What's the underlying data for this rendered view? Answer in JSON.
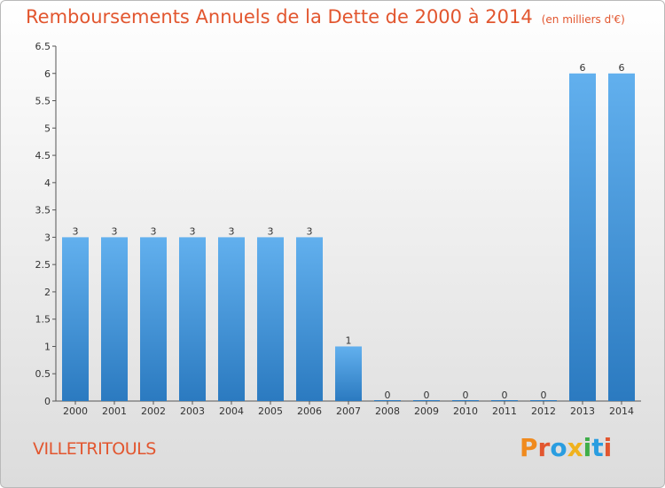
{
  "title": "Remboursements Annuels de la Dette de 2000 à 2014",
  "units": "(en milliers d'€)",
  "town": "VILLETRITOULS",
  "logo": "Proxiti",
  "colors": {
    "title": "#e2562f",
    "bar_light": "#62b0ee",
    "bar_dark": "#2b7ac0",
    "logo": [
      "#f08a1d",
      "#e2562f",
      "#2a9de0",
      "#f0b21d",
      "#3fae49",
      "#2a9de0",
      "#e2562f"
    ]
  },
  "chart_data": {
    "type": "bar",
    "title": "Remboursements Annuels de la Dette de 2000 à 2014",
    "xlabel": "",
    "ylabel": "",
    "categories": [
      "2000",
      "2001",
      "2002",
      "2003",
      "2004",
      "2005",
      "2006",
      "2007",
      "2008",
      "2009",
      "2010",
      "2011",
      "2012",
      "2013",
      "2014"
    ],
    "values": [
      3,
      3,
      3,
      3,
      3,
      3,
      3,
      1,
      0,
      0,
      0,
      0,
      0,
      6,
      6
    ],
    "value_labels": [
      "3",
      "3",
      "3",
      "3",
      "3",
      "3",
      "3",
      "1",
      "0",
      "0",
      "0",
      "0",
      "0",
      "6",
      "6"
    ],
    "ylim": [
      0,
      6.5
    ],
    "yticks": [
      "0",
      "0.5",
      "1",
      "1.5",
      "2",
      "2.5",
      "3",
      "3.5",
      "4",
      "4.5",
      "5",
      "5.5",
      "6",
      "6.5"
    ],
    "grid": false,
    "legend": "none"
  }
}
